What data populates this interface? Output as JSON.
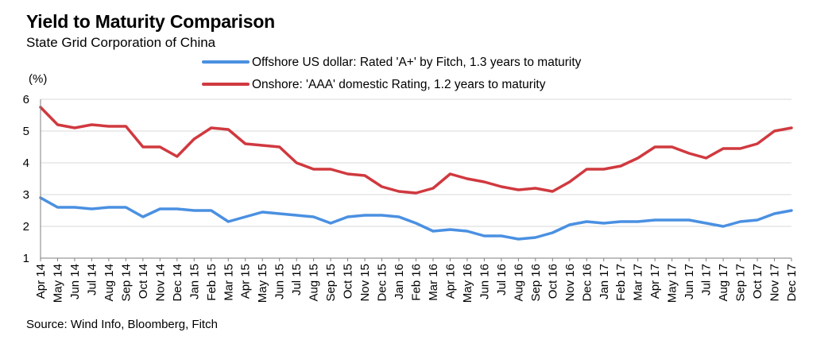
{
  "title": "Yield to Maturity Comparison",
  "subtitle": "State Grid Corporation of China",
  "source": "Source: Wind Info, Bloomberg, Fitch",
  "chart_data": {
    "type": "line",
    "title": "Yield to Maturity Comparison",
    "subtitle": "State Grid Corporation of China",
    "ylabel": "(%)",
    "ylim": [
      1,
      6
    ],
    "yticks": [
      1,
      2,
      3,
      4,
      5,
      6
    ],
    "grid": true,
    "legend_position": "top",
    "categories": [
      "Apr 14",
      "May 14",
      "Jun 14",
      "Jul 14",
      "Aug 14",
      "Sep 14",
      "Oct 14",
      "Nov 14",
      "Dec 14",
      "Jan 15",
      "Feb 15",
      "Mar 15",
      "Apr 15",
      "May 15",
      "Jun 15",
      "Jul 15",
      "Aug 15",
      "Sep 15",
      "Oct 15",
      "Nov 15",
      "Dec 15",
      "Jan 16",
      "Feb 16",
      "Mar 16",
      "Apr 16",
      "May 16",
      "Jun 16",
      "Jul 16",
      "Aug 16",
      "Sep 16",
      "Oct 16",
      "Nov 16",
      "Dec 16",
      "Jan 17",
      "Feb 17",
      "Mar 17",
      "Apr 17",
      "May 17",
      "Jun 17",
      "Jul 17",
      "Aug 17",
      "Sep 17",
      "Oct 17",
      "Nov 17",
      "Dec 17"
    ],
    "series": [
      {
        "name": "Offshore US dollar: Rated 'A+' by Fitch, 1.3 years to maturity",
        "color": "#4a90e2",
        "values": [
          2.9,
          2.6,
          2.6,
          2.55,
          2.6,
          2.6,
          2.3,
          2.55,
          2.55,
          2.5,
          2.5,
          2.15,
          2.3,
          2.45,
          2.4,
          2.35,
          2.3,
          2.1,
          2.3,
          2.35,
          2.35,
          2.3,
          2.1,
          1.85,
          1.9,
          1.85,
          1.7,
          1.7,
          1.6,
          1.65,
          1.8,
          2.05,
          2.15,
          2.1,
          2.15,
          2.15,
          2.2,
          2.2,
          2.2,
          2.1,
          2.0,
          2.15,
          2.2,
          2.4,
          2.5
        ]
      },
      {
        "name": "Onshore: 'AAA' domestic Rating, 1.2 years to maturity",
        "color": "#d0393f",
        "values": [
          5.75,
          5.2,
          5.1,
          5.2,
          5.15,
          5.15,
          4.5,
          4.5,
          4.2,
          4.75,
          5.1,
          5.05,
          4.6,
          4.55,
          4.5,
          4.0,
          3.8,
          3.8,
          3.65,
          3.6,
          3.25,
          3.1,
          3.05,
          3.2,
          3.65,
          3.5,
          3.4,
          3.25,
          3.15,
          3.2,
          3.1,
          3.4,
          3.8,
          3.8,
          3.9,
          4.15,
          4.5,
          4.5,
          4.3,
          4.15,
          4.45,
          4.45,
          4.6,
          5.0,
          5.1
        ]
      }
    ]
  }
}
